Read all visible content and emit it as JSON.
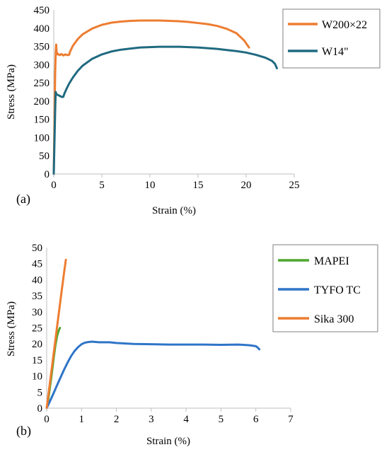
{
  "chart_data": [
    {
      "type": "line",
      "panel_label": "(a)",
      "xlabel": "Strain (%)",
      "ylabel": "Stress (MPa)",
      "xlim": [
        0,
        25
      ],
      "ylim": [
        0,
        450
      ],
      "xticks": [
        0,
        5,
        10,
        15,
        20,
        25
      ],
      "yticks": [
        0,
        50,
        100,
        150,
        200,
        250,
        300,
        350,
        400,
        450
      ],
      "legend_position": "top-right",
      "grid": false,
      "series": [
        {
          "name": "W200×22",
          "color": "#ED7D31",
          "points": [
            [
              0,
              0
            ],
            [
              0.05,
              100
            ],
            [
              0.1,
              200
            ],
            [
              0.15,
              280
            ],
            [
              0.2,
              330
            ],
            [
              0.25,
              355
            ],
            [
              0.3,
              335
            ],
            [
              0.35,
              328
            ],
            [
              0.4,
              330
            ],
            [
              0.6,
              326
            ],
            [
              0.8,
              329
            ],
            [
              1.0,
              325
            ],
            [
              1.2,
              328
            ],
            [
              1.4,
              326
            ],
            [
              1.6,
              327
            ],
            [
              1.7,
              336
            ],
            [
              2.0,
              352
            ],
            [
              2.5,
              370
            ],
            [
              3.0,
              383
            ],
            [
              4.0,
              399
            ],
            [
              5.0,
              409
            ],
            [
              6.0,
              415
            ],
            [
              7.0,
              418
            ],
            [
              8.0,
              420
            ],
            [
              9.0,
              421
            ],
            [
              10.0,
              421
            ],
            [
              11.0,
              421
            ],
            [
              12.0,
              420
            ],
            [
              13.0,
              419
            ],
            [
              14.0,
              417
            ],
            [
              15.0,
              414
            ],
            [
              16.0,
              411
            ],
            [
              17.0,
              406
            ],
            [
              18.0,
              398
            ],
            [
              19.0,
              386
            ],
            [
              19.8,
              366
            ],
            [
              20.3,
              347
            ]
          ]
        },
        {
          "name": "W14\"",
          "color": "#1F6A80",
          "points": [
            [
              0,
              0
            ],
            [
              0.05,
              60
            ],
            [
              0.1,
              120
            ],
            [
              0.15,
              180
            ],
            [
              0.2,
              225
            ],
            [
              0.3,
              218
            ],
            [
              0.5,
              216
            ],
            [
              0.7,
              213
            ],
            [
              0.9,
              211
            ],
            [
              1.0,
              212
            ],
            [
              1.1,
              220
            ],
            [
              1.3,
              232
            ],
            [
              1.6,
              248
            ],
            [
              2.0,
              265
            ],
            [
              2.5,
              283
            ],
            [
              3.0,
              297
            ],
            [
              4.0,
              316
            ],
            [
              5.0,
              328
            ],
            [
              6.0,
              336
            ],
            [
              7.0,
              341
            ],
            [
              8.0,
              344
            ],
            [
              9.0,
              347
            ],
            [
              10.0,
              348
            ],
            [
              11.0,
              349
            ],
            [
              12.0,
              349
            ],
            [
              13.0,
              349
            ],
            [
              14.0,
              348
            ],
            [
              15.0,
              347
            ],
            [
              16.0,
              345
            ],
            [
              17.0,
              343
            ],
            [
              18.0,
              340
            ],
            [
              19.0,
              337
            ],
            [
              20.0,
              333
            ],
            [
              21.0,
              327
            ],
            [
              22.0,
              319
            ],
            [
              22.7,
              310
            ],
            [
              23.0,
              302
            ],
            [
              23.2,
              290
            ]
          ]
        }
      ]
    },
    {
      "type": "line",
      "panel_label": "(b)",
      "xlabel": "Strain (%)",
      "ylabel": "Stress (MPa)",
      "xlim": [
        0,
        7
      ],
      "ylim": [
        0,
        50
      ],
      "xticks": [
        0,
        1,
        2,
        3,
        4,
        5,
        6,
        7
      ],
      "yticks": [
        0,
        5,
        10,
        15,
        20,
        25,
        30,
        35,
        40,
        45,
        50
      ],
      "legend_position": "top-right",
      "grid": false,
      "series": [
        {
          "name": "MAPEI",
          "color": "#4EA72E",
          "points": [
            [
              0,
              0
            ],
            [
              0.05,
              3
            ],
            [
              0.1,
              7
            ],
            [
              0.15,
              11
            ],
            [
              0.2,
              15.5
            ],
            [
              0.25,
              19.5
            ],
            [
              0.3,
              22.5
            ],
            [
              0.35,
              24.3
            ],
            [
              0.38,
              25
            ]
          ]
        },
        {
          "name": "TYFO TC",
          "color": "#2F75C8",
          "points": [
            [
              0,
              0
            ],
            [
              0.1,
              2.3
            ],
            [
              0.2,
              4.7
            ],
            [
              0.3,
              7.2
            ],
            [
              0.4,
              9.6
            ],
            [
              0.5,
              12
            ],
            [
              0.6,
              14.2
            ],
            [
              0.7,
              16.2
            ],
            [
              0.8,
              17.8
            ],
            [
              0.9,
              19
            ],
            [
              1.0,
              19.9
            ],
            [
              1.1,
              20.4
            ],
            [
              1.2,
              20.6
            ],
            [
              1.3,
              20.7
            ],
            [
              1.5,
              20.5
            ],
            [
              1.8,
              20.5
            ],
            [
              2.0,
              20.3
            ],
            [
              2.5,
              20.0
            ],
            [
              3.0,
              19.9
            ],
            [
              3.5,
              19.8
            ],
            [
              4.0,
              19.8
            ],
            [
              4.5,
              19.8
            ],
            [
              5.0,
              19.7
            ],
            [
              5.5,
              19.8
            ],
            [
              5.8,
              19.6
            ],
            [
              6.0,
              19.3
            ],
            [
              6.05,
              18.9
            ],
            [
              6.1,
              18.3
            ]
          ]
        },
        {
          "name": "Sika 300",
          "color": "#ED7D31",
          "points": [
            [
              0,
              0
            ],
            [
              0.1,
              8.5
            ],
            [
              0.2,
              17
            ],
            [
              0.3,
              25.5
            ],
            [
              0.4,
              34
            ],
            [
              0.5,
              42.3
            ],
            [
              0.55,
              46.2
            ]
          ]
        }
      ]
    }
  ]
}
